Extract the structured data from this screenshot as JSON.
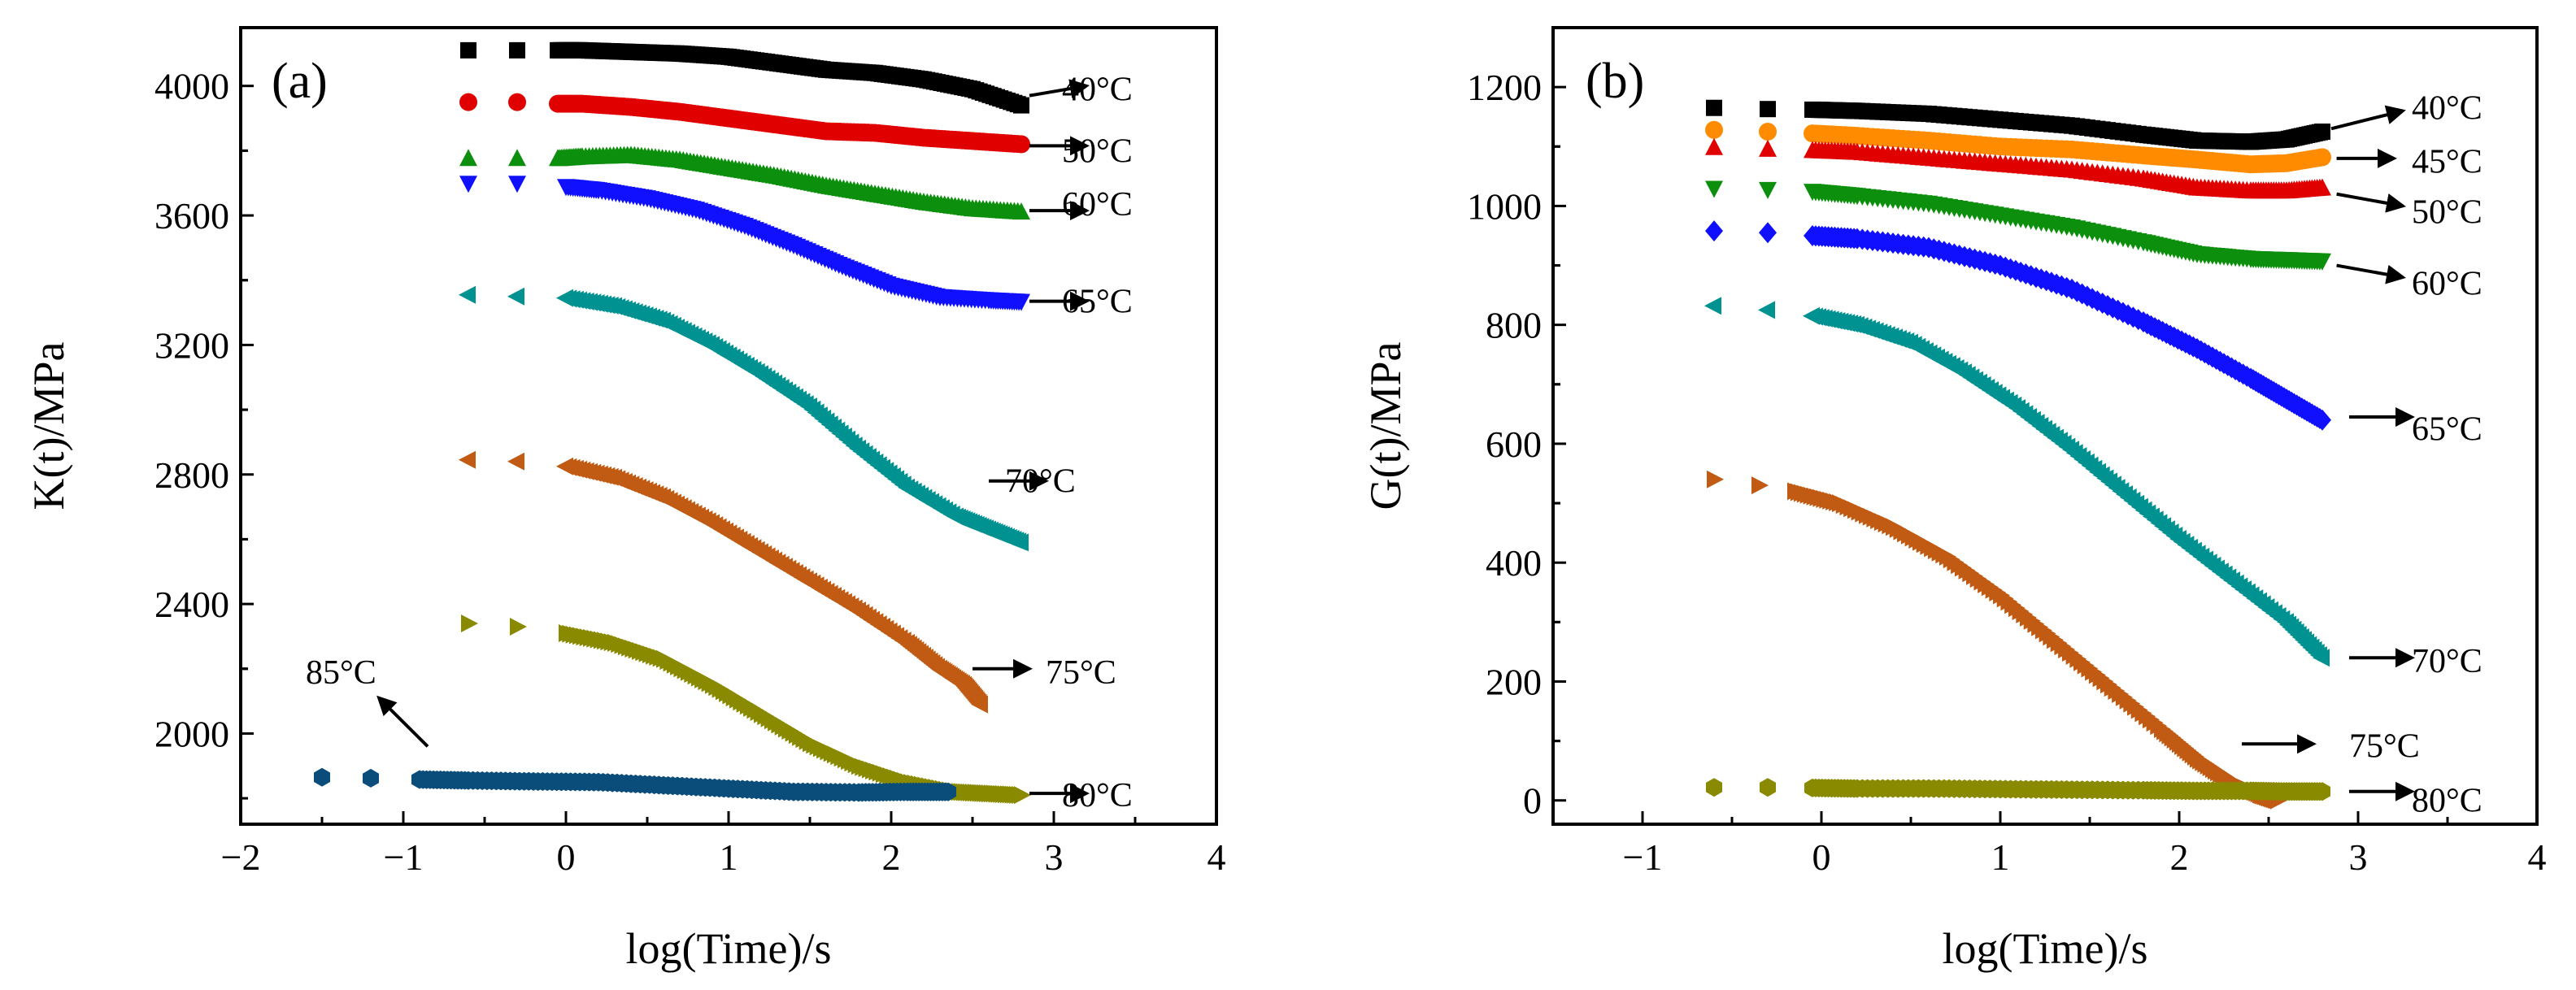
{
  "chart_data": [
    {
      "panel_label": "(a)",
      "type": "scatter",
      "xlabel": "log(Time)/s",
      "ylabel": "K(t)/MPa",
      "xlim": [
        -2,
        4
      ],
      "ylim": [
        1720,
        4180
      ],
      "xticks": [
        "−2",
        "−1",
        "0",
        "1",
        "2",
        "3",
        "4"
      ],
      "yticks": [
        "2000",
        "2400",
        "2800",
        "3200",
        "3600",
        "4000"
      ],
      "series": [
        {
          "name": "40°C",
          "marker": "square",
          "color": "#000000",
          "x": [
            -0.6,
            -0.3,
            -0.05,
            0.1,
            0.4,
            0.7,
            1.0,
            1.3,
            1.6,
            1.9,
            2.2,
            2.5,
            2.8
          ],
          "y": [
            4110,
            4110,
            4110,
            4110,
            4105,
            4100,
            4090,
            4070,
            4050,
            4040,
            4020,
            3990,
            3940
          ],
          "label_at": [
            3.05,
            3990
          ],
          "arrow_from": [
            2.85,
            3970
          ],
          "arrow_to": [
            3.2,
            4000
          ]
        },
        {
          "name": "50°C",
          "marker": "circle",
          "color": "#e00000",
          "x": [
            -0.6,
            -0.3,
            -0.05,
            0.1,
            0.4,
            0.7,
            1.0,
            1.3,
            1.6,
            1.9,
            2.2,
            2.5,
            2.8
          ],
          "y": [
            3950,
            3950,
            3945,
            3945,
            3935,
            3920,
            3900,
            3880,
            3860,
            3855,
            3840,
            3830,
            3820
          ],
          "label_at": [
            3.05,
            3800
          ],
          "arrow_from": [
            2.85,
            3815
          ],
          "arrow_to": [
            3.2,
            3815
          ]
        },
        {
          "name": "60°C",
          "marker": "triangle-up",
          "color": "#0c8f0c",
          "x": [
            -0.6,
            -0.3,
            -0.05,
            0.1,
            0.4,
            0.7,
            1.0,
            1.3,
            1.6,
            1.9,
            2.2,
            2.5,
            2.8
          ],
          "y": [
            3775,
            3775,
            3775,
            3780,
            3785,
            3770,
            3745,
            3720,
            3690,
            3665,
            3640,
            3620,
            3610
          ],
          "label_at": [
            3.05,
            3635
          ],
          "arrow_from": [
            2.85,
            3615
          ],
          "arrow_to": [
            3.2,
            3615
          ]
        },
        {
          "name": "65°C",
          "marker": "triangle-down",
          "color": "#1010ff",
          "x": [
            -0.6,
            -0.3,
            0.0,
            0.2,
            0.5,
            0.8,
            1.1,
            1.4,
            1.7,
            2.0,
            2.3,
            2.6,
            2.8
          ],
          "y": [
            3700,
            3700,
            3690,
            3680,
            3655,
            3620,
            3570,
            3510,
            3445,
            3385,
            3350,
            3340,
            3335
          ],
          "label_at": [
            3.05,
            3335
          ],
          "arrow_from": [
            2.85,
            3335
          ],
          "arrow_to": [
            3.2,
            3335
          ]
        },
        {
          "name": "70°C",
          "marker": "triangle-left",
          "color": "#009191",
          "x": [
            -0.6,
            -0.3,
            0.0,
            0.3,
            0.6,
            0.9,
            1.2,
            1.5,
            1.8,
            2.1,
            2.4,
            2.6,
            2.8
          ],
          "y": [
            3355,
            3350,
            3345,
            3320,
            3275,
            3200,
            3110,
            3010,
            2880,
            2760,
            2670,
            2630,
            2590
          ],
          "label_at": [
            2.7,
            2780
          ],
          "arrow_from": [
            2.6,
            2780
          ],
          "arrow_to": [
            2.95,
            2780
          ]
        },
        {
          "name": "75°C",
          "marker": "triangle-left",
          "color": "#c15b14",
          "x": [
            -0.6,
            -0.3,
            0.0,
            0.3,
            0.6,
            0.9,
            1.2,
            1.5,
            1.8,
            2.1,
            2.3,
            2.45,
            2.55
          ],
          "y": [
            2845,
            2840,
            2825,
            2790,
            2730,
            2650,
            2560,
            2470,
            2380,
            2280,
            2200,
            2150,
            2090
          ],
          "label_at": [
            2.95,
            2190
          ],
          "arrow_from": [
            2.5,
            2200
          ],
          "arrow_to": [
            2.85,
            2200
          ]
        },
        {
          "name": "80°C",
          "marker": "triangle-right",
          "color": "#8a8a00",
          "x": [
            -0.6,
            -0.3,
            0.0,
            0.3,
            0.6,
            0.9,
            1.2,
            1.5,
            1.8,
            2.1,
            2.4,
            2.6,
            2.8
          ],
          "y": [
            2340,
            2330,
            2310,
            2280,
            2230,
            2150,
            2060,
            1970,
            1900,
            1850,
            1820,
            1815,
            1810
          ],
          "label_at": [
            3.05,
            1810
          ],
          "arrow_from": [
            2.85,
            1815
          ],
          "arrow_to": [
            3.2,
            1815
          ]
        },
        {
          "name": "85°C",
          "marker": "hexagon",
          "color": "#0a4c7a",
          "x": [
            -1.5,
            -1.2,
            -0.9,
            -0.6,
            -0.2,
            0.2,
            0.6,
            1.0,
            1.4,
            1.8,
            2.1,
            2.35
          ],
          "y": [
            1865,
            1862,
            1858,
            1855,
            1852,
            1850,
            1840,
            1830,
            1820,
            1818,
            1820,
            1820
          ],
          "label_at": [
            -1.6,
            2190
          ],
          "arrow_from": [
            -0.85,
            1960
          ],
          "arrow_to": [
            -1.15,
            2110
          ]
        }
      ]
    },
    {
      "panel_label": "(b)",
      "type": "scatter",
      "xlabel": "log(Time)/s",
      "ylabel": "G(t)/MPa",
      "xlim": [
        -1.5,
        4
      ],
      "ylim": [
        -40,
        1300
      ],
      "xticks": [
        "−1",
        "0",
        "1",
        "2",
        "3",
        "4"
      ],
      "yticks": [
        "0",
        "200",
        "400",
        "600",
        "800",
        "1000",
        "1200"
      ],
      "series": [
        {
          "name": "40°C",
          "marker": "square",
          "color": "#000000",
          "x": [
            -0.6,
            -0.3,
            -0.05,
            0.2,
            0.6,
            1.0,
            1.4,
            1.8,
            2.1,
            2.4,
            2.6,
            2.8
          ],
          "y": [
            1165,
            1163,
            1162,
            1160,
            1155,
            1145,
            1135,
            1120,
            1110,
            1108,
            1112,
            1125
          ],
          "label_at": [
            3.3,
            1165
          ],
          "arrow_from": [
            2.85,
            1130
          ],
          "arrow_to": [
            3.25,
            1160
          ]
        },
        {
          "name": "45°C",
          "marker": "circle",
          "color": "#ff8c00",
          "x": [
            -0.6,
            -0.3,
            -0.05,
            0.2,
            0.6,
            1.0,
            1.4,
            1.8,
            2.1,
            2.4,
            2.6,
            2.8
          ],
          "y": [
            1128,
            1125,
            1122,
            1118,
            1110,
            1100,
            1095,
            1085,
            1078,
            1070,
            1072,
            1082
          ],
          "label_at": [
            3.3,
            1075
          ],
          "arrow_from": [
            2.88,
            1080
          ],
          "arrow_to": [
            3.2,
            1080
          ]
        },
        {
          "name": "50°C",
          "marker": "triangle-up",
          "color": "#e00000",
          "x": [
            -0.6,
            -0.3,
            -0.05,
            0.2,
            0.6,
            1.0,
            1.4,
            1.8,
            2.1,
            2.4,
            2.6,
            2.8
          ],
          "y": [
            1098,
            1095,
            1093,
            1090,
            1080,
            1070,
            1060,
            1045,
            1030,
            1025,
            1025,
            1030
          ],
          "label_at": [
            3.3,
            990
          ],
          "arrow_from": [
            2.88,
            1020
          ],
          "arrow_to": [
            3.25,
            1000
          ]
        },
        {
          "name": "60°C",
          "marker": "triangle-down",
          "color": "#0c8f0c",
          "x": [
            -0.6,
            -0.3,
            -0.05,
            0.2,
            0.6,
            1.0,
            1.4,
            1.8,
            2.1,
            2.4,
            2.6,
            2.8
          ],
          "y": [
            1030,
            1028,
            1025,
            1018,
            1005,
            985,
            965,
            940,
            920,
            912,
            910,
            908
          ],
          "label_at": [
            3.3,
            870
          ],
          "arrow_from": [
            2.88,
            900
          ],
          "arrow_to": [
            3.25,
            880
          ]
        },
        {
          "name": "65°C",
          "marker": "diamond",
          "color": "#1010ff",
          "x": [
            -0.6,
            -0.3,
            -0.05,
            0.2,
            0.6,
            1.0,
            1.4,
            1.8,
            2.1,
            2.4,
            2.6,
            2.8
          ],
          "y": [
            958,
            955,
            950,
            945,
            930,
            900,
            860,
            805,
            760,
            710,
            675,
            640
          ],
          "label_at": [
            3.3,
            625
          ],
          "arrow_from": [
            2.95,
            645
          ],
          "arrow_to": [
            3.3,
            645
          ]
        },
        {
          "name": "70°C",
          "marker": "triangle-left",
          "color": "#009191",
          "x": [
            -0.6,
            -0.3,
            -0.05,
            0.2,
            0.5,
            0.8,
            1.1,
            1.4,
            1.7,
            2.0,
            2.3,
            2.6,
            2.8
          ],
          "y": [
            832,
            825,
            815,
            800,
            770,
            720,
            660,
            590,
            515,
            440,
            370,
            300,
            240
          ],
          "label_at": [
            3.3,
            235
          ],
          "arrow_from": [
            2.95,
            240
          ],
          "arrow_to": [
            3.3,
            240
          ]
        },
        {
          "name": "75°C",
          "marker": "triangle-right",
          "color": "#c15b14",
          "x": [
            -0.6,
            -0.35,
            -0.15,
            0.1,
            0.4,
            0.7,
            1.0,
            1.3,
            1.6,
            1.9,
            2.1,
            2.3,
            2.45,
            2.55
          ],
          "y": [
            540,
            530,
            520,
            500,
            460,
            410,
            345,
            270,
            195,
            120,
            70,
            30,
            10,
            0
          ],
          "label_at": [
            2.95,
            92
          ],
          "arrow_from": [
            2.35,
            95
          ],
          "arrow_to": [
            2.75,
            95
          ]
        },
        {
          "name": "80°C",
          "marker": "hexagon",
          "color": "#8a8a00",
          "x": [
            -0.6,
            -0.3,
            -0.05,
            0.2,
            0.6,
            1.0,
            1.4,
            1.8,
            2.1,
            2.4,
            2.6,
            2.8
          ],
          "y": [
            22,
            22,
            21,
            20,
            20,
            19,
            18,
            17,
            16,
            16,
            15,
            15
          ],
          "label_at": [
            3.3,
            0
          ],
          "arrow_from": [
            2.95,
            15
          ],
          "arrow_to": [
            3.3,
            15
          ]
        }
      ]
    }
  ]
}
